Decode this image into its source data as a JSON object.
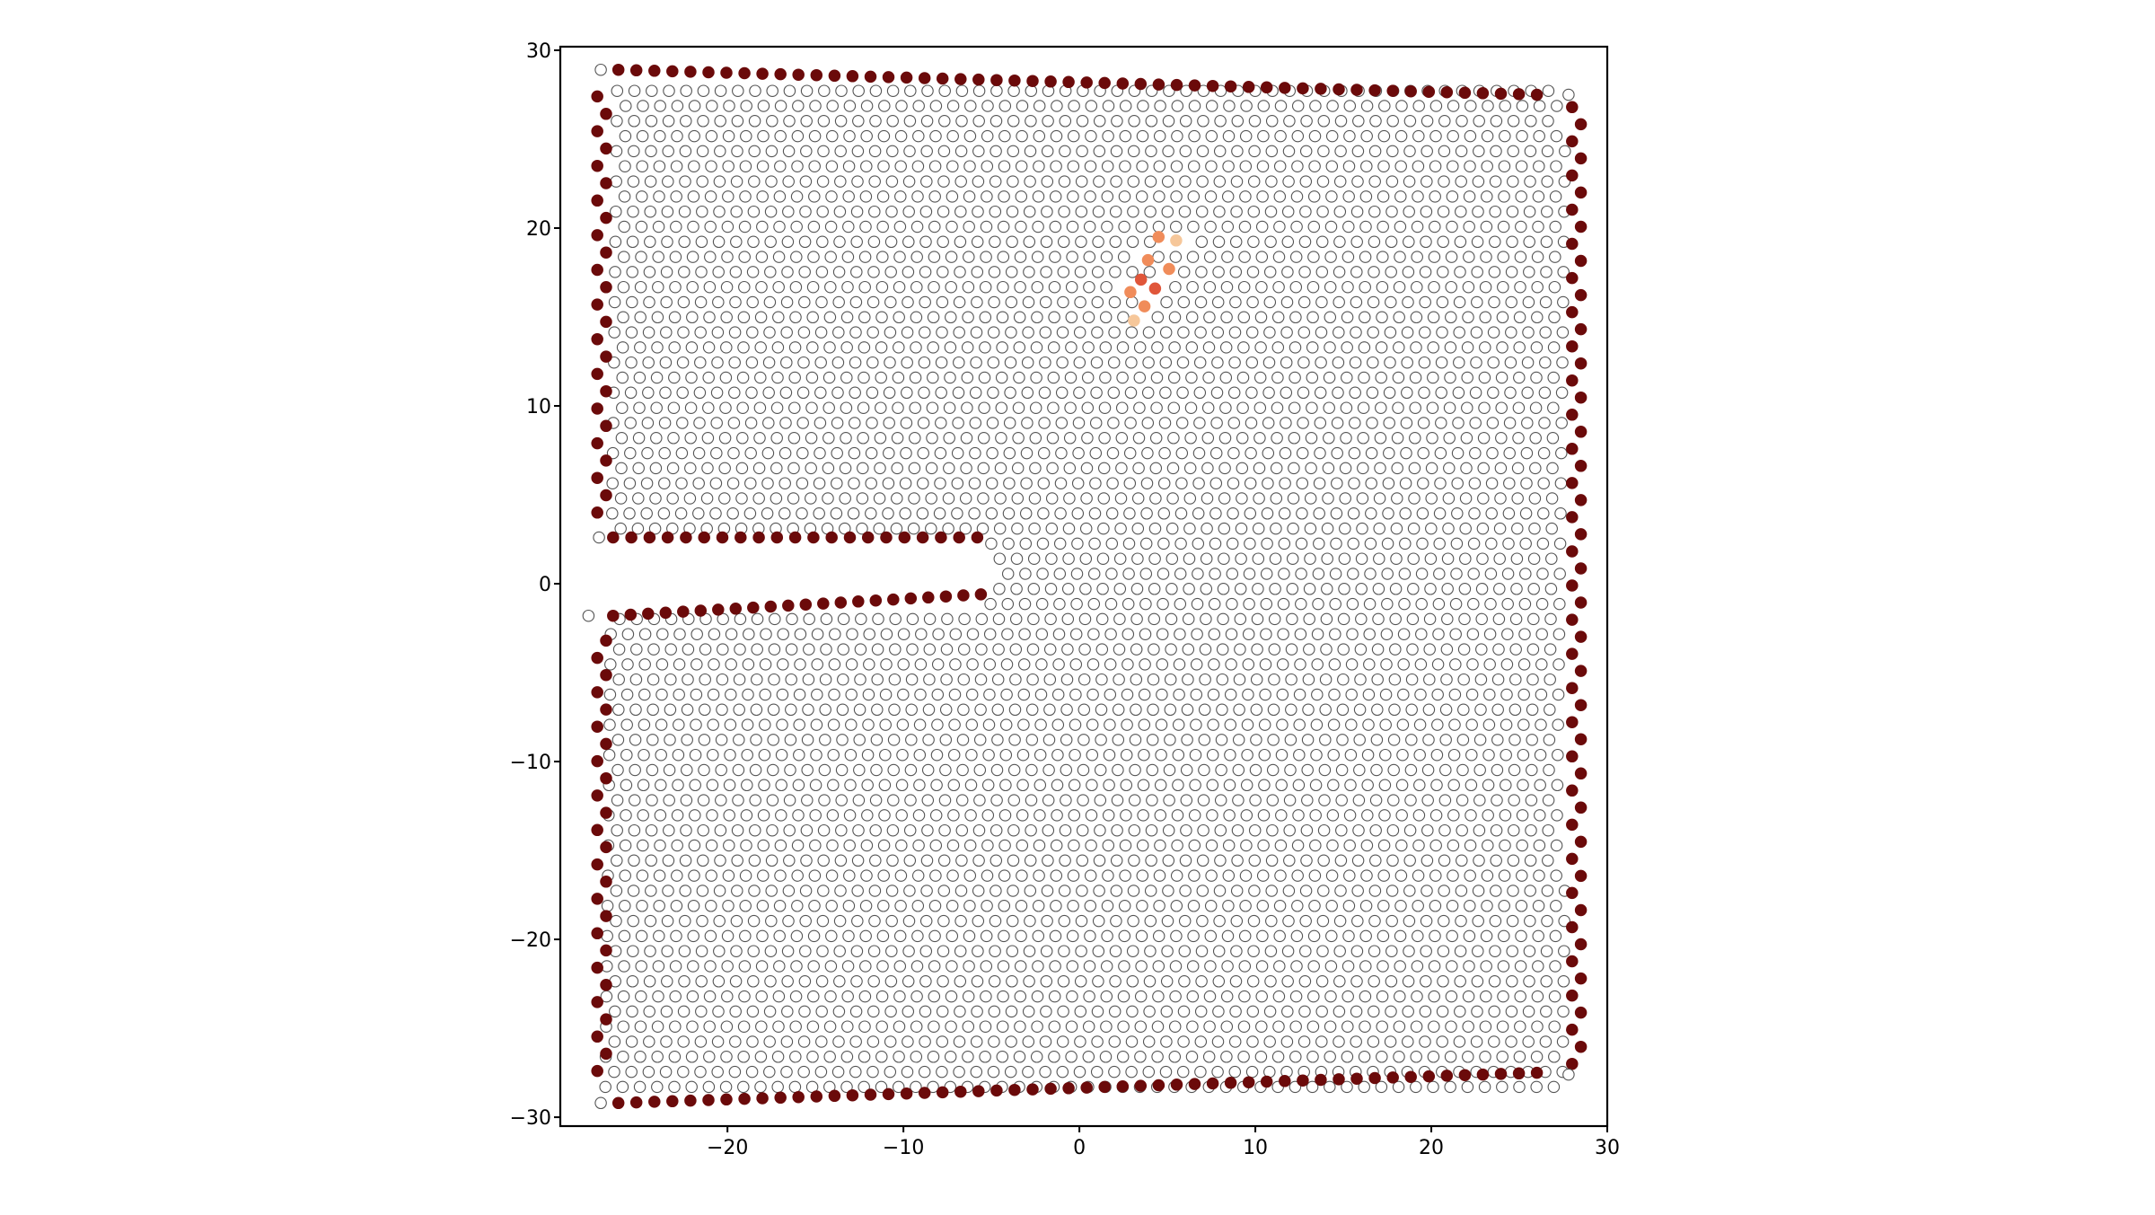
{
  "chart_data": {
    "type": "scatter",
    "title": "",
    "xlabel": "",
    "ylabel": "",
    "xlim": [
      -29.5,
      30
    ],
    "ylim": [
      -30.5,
      30.2
    ],
    "x_ticks": [
      -20,
      -10,
      0,
      10,
      20,
      30
    ],
    "y_ticks": [
      -30,
      -20,
      -10,
      0,
      10,
      20,
      30
    ],
    "x_tick_labels": [
      "−20",
      "−10",
      "0",
      "10",
      "20",
      "30"
    ],
    "y_tick_labels": [
      "−30",
      "−20",
      "−10",
      "0",
      "10",
      "20",
      "30"
    ],
    "grid": false,
    "legend": "none",
    "lattice": {
      "description_of_marks": "hexagonal lattice of open circles with an edge notch",
      "spacing": 0.98,
      "bounds": {
        "xmin": -27.2,
        "xmax": 28.2,
        "ymin": -29.2,
        "ymax": 28.8
      },
      "notch": {
        "x_from": -27.5,
        "x_to": -5.2,
        "y_from": -1.6,
        "y_to": 2.6
      }
    },
    "boundary_points": {
      "top": {
        "from": [
          -26.2,
          28.9
        ],
        "to": [
          26.0,
          27.5
        ],
        "count": 52
      },
      "bottom": {
        "from": [
          -26.2,
          -29.2
        ],
        "to": [
          26.0,
          -27.5
        ],
        "count": 52
      },
      "right": {
        "x": 28.0,
        "y_from": -27.0,
        "y_to": 26.8,
        "count": 57
      },
      "left_upper": {
        "x": -27.4,
        "y_from": 4.0,
        "y_to": 27.4,
        "count": 25
      },
      "left_lower": {
        "x": -27.4,
        "y_from": -27.4,
        "y_to": -3.2,
        "count": 26
      },
      "notch_top": {
        "from": [
          -26.5,
          2.6
        ],
        "to": [
          -5.8,
          2.6
        ],
        "count": 21
      },
      "notch_bottom": {
        "from": [
          -26.5,
          -1.8
        ],
        "to": [
          -5.6,
          -0.6
        ],
        "count": 22
      }
    },
    "highlight_points": [
      {
        "x": 4.5,
        "y": 19.5,
        "level": 0.35
      },
      {
        "x": 3.9,
        "y": 18.2,
        "level": 0.75
      },
      {
        "x": 5.1,
        "y": 17.7,
        "level": 0.55
      },
      {
        "x": 3.5,
        "y": 17.1,
        "level": 0.95
      },
      {
        "x": 4.3,
        "y": 16.6,
        "level": 0.9
      },
      {
        "x": 2.9,
        "y": 16.4,
        "level": 0.6
      },
      {
        "x": 3.7,
        "y": 15.6,
        "level": 0.5
      },
      {
        "x": 5.5,
        "y": 19.3,
        "level": 0.15
      },
      {
        "x": 3.1,
        "y": 14.8,
        "level": 0.15
      }
    ],
    "colors": {
      "boundary": "#6b0a0a",
      "open_fill": "#ffffff",
      "open_stroke": "#555555",
      "high": "#e0563a",
      "mid": "#f08c5a",
      "low": "#f6c79a"
    }
  }
}
